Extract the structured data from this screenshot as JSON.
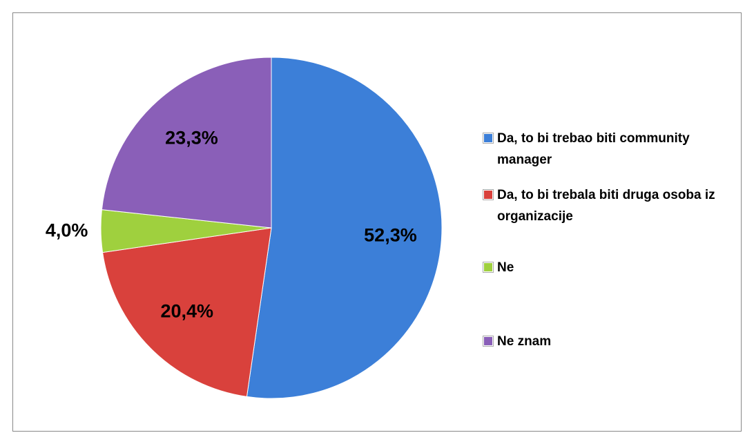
{
  "chart_data": {
    "type": "pie",
    "categories": [
      "Da, to bi trebao biti community manager",
      "Da, to bi trebala biti druga osoba iz organizacije",
      "Ne",
      "Ne znam"
    ],
    "values": [
      52.3,
      20.4,
      4.0,
      23.3
    ],
    "value_labels": [
      "52,3%",
      "20,4%",
      "4,0%",
      "23,3%"
    ],
    "colors": [
      "#3c7fd8",
      "#d9413c",
      "#9fd03e",
      "#8a5fb8"
    ],
    "legend": "right"
  }
}
